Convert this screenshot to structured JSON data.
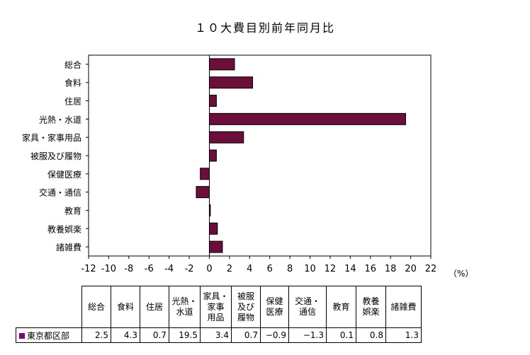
{
  "chart_data": {
    "type": "bar",
    "orientation": "horizontal",
    "title": "１０大費目別前年同月比",
    "categories": [
      "総合",
      "食料",
      "住居",
      "光熱・水道",
      "家具・家事用品",
      "被服及び履物",
      "保健医療",
      "交通・通信",
      "教育",
      "教養娯楽",
      "諸雑費"
    ],
    "series": [
      {
        "name": "東京都区部",
        "values": [
          2.5,
          4.3,
          0.7,
          19.5,
          3.4,
          0.7,
          -0.9,
          -1.3,
          0.1,
          0.8,
          1.3
        ]
      }
    ],
    "xlim": [
      -12,
      22
    ],
    "xticks": [
      -12,
      -10,
      -8,
      -6,
      -4,
      -2,
      0,
      2,
      4,
      6,
      8,
      10,
      12,
      14,
      16,
      18,
      20,
      22
    ],
    "xunit": "（%）",
    "grid": false,
    "colors": {
      "bar": "#6b0f3a",
      "legend_swatch": "#800080"
    }
  },
  "table": {
    "headers": [
      "総合",
      "食料",
      "住居",
      "光熱・\n水道",
      "家具・\n家事\n用品",
      "被服\n及び\n履物",
      "保健\n医療",
      "交通・\n通信",
      "教育",
      "教養\n娯楽",
      "諸雑費"
    ],
    "row_label": "東京都区部",
    "values": [
      "2.5",
      "4.3",
      "0.7",
      "19.5",
      "3.4",
      "0.7",
      "−0.9",
      "−1.3",
      "0.1",
      "0.8",
      "1.3"
    ]
  }
}
